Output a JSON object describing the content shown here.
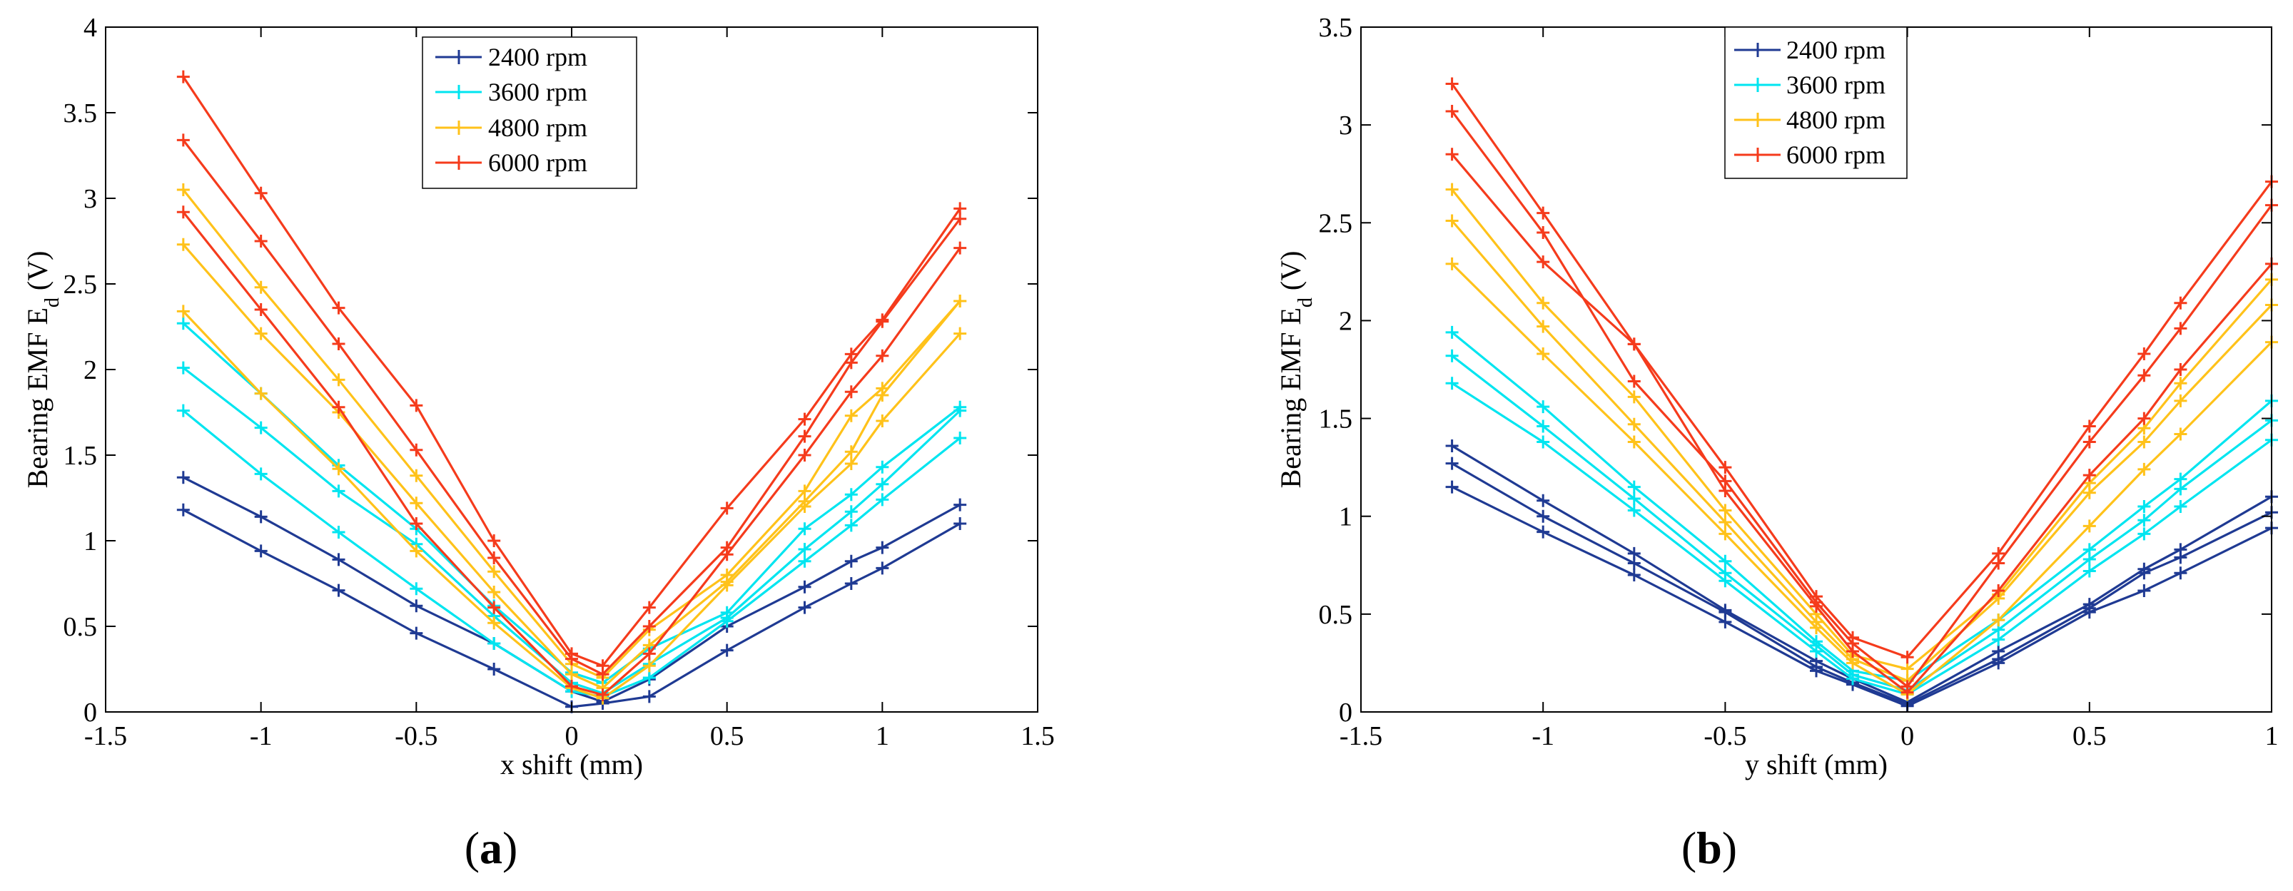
{
  "colors": {
    "s2400": "#1f3a93",
    "s3600": "#00e5f0",
    "s4800": "#ffc21a",
    "s6000": "#f53b1c"
  },
  "chart_data": [
    {
      "type": "line",
      "panel_label_open": "(",
      "panel_label": "a",
      "panel_label_close": ")",
      "xlabel": "x shift (mm)",
      "ylabel_main": "Bearing EMF E",
      "ylabel_sub": "d",
      "ylabel_unit": " (V)",
      "xlim": [
        -1.5,
        1.5
      ],
      "ylim": [
        0,
        4
      ],
      "xticks": [
        "-1.5",
        "-1",
        "-0.5",
        "0",
        "0.5",
        "1",
        "1.5"
      ],
      "yticks": [
        "0",
        "0.5",
        "1",
        "1.5",
        "2",
        "2.5",
        "3",
        "3.5",
        "4"
      ],
      "legend_position": "top-center",
      "legend": [
        "2400 rpm",
        "3600 rpm",
        "4800 rpm",
        "6000 rpm"
      ],
      "x": [
        -1.25,
        -1,
        -0.75,
        -0.5,
        -0.25,
        0,
        0.1,
        0.25,
        0.5,
        0.75,
        0.9,
        1,
        1.25
      ],
      "series": [
        {
          "name": "2400 rpm",
          "color_key": "s2400",
          "values": [
            1.37,
            1.14,
            0.89,
            0.62,
            0.4,
            0.12,
            0.06,
            0.19,
            0.5,
            0.73,
            0.88,
            0.96,
            1.21
          ]
        },
        {
          "name": "2400 rpm",
          "color_key": "s2400",
          "values": [
            1.18,
            0.94,
            0.71,
            0.46,
            0.25,
            0.03,
            0.05,
            0.09,
            0.36,
            0.61,
            0.75,
            0.84,
            1.1
          ]
        },
        {
          "name": "3600 rpm",
          "color_key": "s3600",
          "values": [
            2.27,
            1.86,
            1.44,
            1.07,
            0.62,
            0.23,
            0.17,
            0.37,
            0.58,
            1.07,
            1.27,
            1.43,
            1.78
          ]
        },
        {
          "name": "3600 rpm",
          "color_key": "s3600",
          "values": [
            2.01,
            1.66,
            1.29,
            0.98,
            0.56,
            0.17,
            0.11,
            0.28,
            0.55,
            0.95,
            1.17,
            1.33,
            1.76
          ]
        },
        {
          "name": "3600 rpm",
          "color_key": "s3600",
          "values": [
            1.76,
            1.39,
            1.05,
            0.72,
            0.4,
            0.12,
            0.09,
            0.2,
            0.53,
            0.88,
            1.09,
            1.24,
            1.6
          ]
        },
        {
          "name": "4800 rpm",
          "color_key": "s4800",
          "values": [
            3.05,
            2.48,
            1.94,
            1.38,
            0.82,
            0.28,
            0.2,
            0.48,
            0.8,
            1.29,
            1.73,
            1.89,
            2.4
          ]
        },
        {
          "name": "4800 rpm",
          "color_key": "s4800",
          "values": [
            2.73,
            2.21,
            1.75,
            1.22,
            0.7,
            0.22,
            0.14,
            0.39,
            0.76,
            1.23,
            1.52,
            1.85,
            2.4
          ]
        },
        {
          "name": "4800 rpm",
          "color_key": "s4800",
          "values": [
            2.34,
            1.86,
            1.42,
            0.94,
            0.52,
            0.14,
            0.08,
            0.27,
            0.74,
            1.2,
            1.45,
            1.7,
            2.21
          ]
        },
        {
          "name": "6000 rpm",
          "color_key": "s6000",
          "values": [
            3.71,
            3.03,
            2.36,
            1.79,
            1.0,
            0.34,
            0.27,
            0.61,
            1.19,
            1.71,
            2.09,
            2.29,
            2.94
          ]
        },
        {
          "name": "6000 rpm",
          "color_key": "s6000",
          "values": [
            3.34,
            2.75,
            2.15,
            1.53,
            0.9,
            0.31,
            0.22,
            0.5,
            0.96,
            1.61,
            2.04,
            2.28,
            2.88
          ]
        },
        {
          "name": "6000 rpm",
          "color_key": "s6000",
          "values": [
            2.92,
            2.35,
            1.78,
            1.1,
            0.61,
            0.15,
            0.1,
            0.34,
            0.92,
            1.5,
            1.87,
            2.08,
            2.71
          ]
        }
      ]
    },
    {
      "type": "line",
      "panel_label_open": "(",
      "panel_label": "b",
      "panel_label_close": ")",
      "xlabel": "y shift (mm)",
      "ylabel_main": "Bearing EMF E",
      "ylabel_sub": "d",
      "ylabel_unit": " (V)",
      "xlim": [
        -1.5,
        1
      ],
      "ylim": [
        0,
        3.5
      ],
      "xticks": [
        "-1.5",
        "-1",
        "-0.5",
        "0",
        "0.5",
        "1"
      ],
      "yticks": [
        "0",
        "0.5",
        "1",
        "1.5",
        "2",
        "2.5",
        "3",
        "3.5"
      ],
      "legend_position": "top-center",
      "legend": [
        "2400 rpm",
        "3600 rpm",
        "4800 rpm",
        "6000 rpm"
      ],
      "x": [
        -1.25,
        -1,
        -0.75,
        -0.5,
        -0.25,
        -0.15,
        0,
        0.25,
        0.5,
        0.65,
        0.75,
        1
      ],
      "series": [
        {
          "name": "2400 rpm",
          "color_key": "s2400",
          "values": [
            1.36,
            1.08,
            0.81,
            0.52,
            0.26,
            0.17,
            0.05,
            0.31,
            0.55,
            0.73,
            0.83,
            1.1
          ]
        },
        {
          "name": "2400 rpm",
          "color_key": "s2400",
          "values": [
            1.27,
            1.0,
            0.76,
            0.51,
            0.23,
            0.15,
            0.04,
            0.27,
            0.53,
            0.71,
            0.79,
            1.02
          ]
        },
        {
          "name": "2400 rpm",
          "color_key": "s2400",
          "values": [
            1.15,
            0.92,
            0.7,
            0.46,
            0.21,
            0.14,
            0.03,
            0.25,
            0.51,
            0.62,
            0.71,
            0.94
          ]
        },
        {
          "name": "3600 rpm",
          "color_key": "s3600",
          "values": [
            1.94,
            1.56,
            1.15,
            0.77,
            0.36,
            0.21,
            0.16,
            0.47,
            0.83,
            1.05,
            1.19,
            1.59
          ]
        },
        {
          "name": "3600 rpm",
          "color_key": "s3600",
          "values": [
            1.82,
            1.46,
            1.09,
            0.71,
            0.34,
            0.19,
            0.11,
            0.42,
            0.78,
            0.98,
            1.14,
            1.49
          ]
        },
        {
          "name": "3600 rpm",
          "color_key": "s3600",
          "values": [
            1.68,
            1.38,
            1.03,
            0.67,
            0.31,
            0.17,
            0.09,
            0.37,
            0.72,
            0.91,
            1.05,
            1.39
          ]
        },
        {
          "name": "4800 rpm",
          "color_key": "s4800",
          "values": [
            2.67,
            2.09,
            1.61,
            1.03,
            0.5,
            0.29,
            0.22,
            0.6,
            1.17,
            1.45,
            1.68,
            2.21
          ]
        },
        {
          "name": "4800 rpm",
          "color_key": "s4800",
          "values": [
            2.51,
            1.97,
            1.47,
            0.97,
            0.46,
            0.27,
            0.16,
            0.58,
            1.12,
            1.38,
            1.59,
            2.08
          ]
        },
        {
          "name": "4800 rpm",
          "color_key": "s4800",
          "values": [
            2.29,
            1.83,
            1.38,
            0.91,
            0.43,
            0.25,
            0.09,
            0.47,
            0.95,
            1.24,
            1.42,
            1.89
          ]
        },
        {
          "name": "6000 rpm",
          "color_key": "s6000",
          "values": [
            3.21,
            2.55,
            1.88,
            1.25,
            0.59,
            0.38,
            0.28,
            0.81,
            1.46,
            1.83,
            2.09,
            2.71
          ]
        },
        {
          "name": "6000 rpm",
          "color_key": "s6000",
          "values": [
            3.07,
            2.45,
            1.69,
            1.18,
            0.56,
            0.35,
            0.13,
            0.76,
            1.38,
            1.72,
            1.96,
            2.59
          ]
        },
        {
          "name": "6000 rpm",
          "color_key": "s6000",
          "values": [
            2.85,
            2.3,
            1.88,
            1.13,
            0.54,
            0.31,
            0.1,
            0.62,
            1.21,
            1.5,
            1.75,
            2.29
          ]
        }
      ]
    }
  ]
}
